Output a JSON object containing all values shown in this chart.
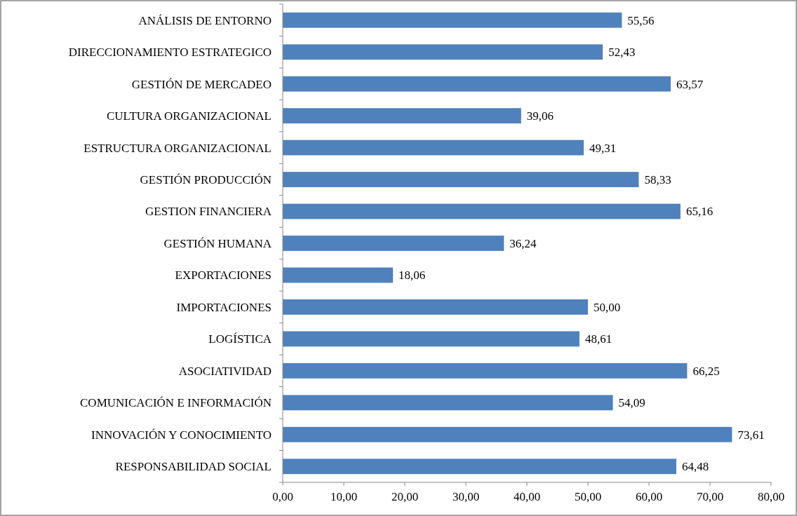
{
  "chart_data": {
    "type": "bar",
    "orientation": "horizontal",
    "categories": [
      "ANÁLISIS DE ENTORNO",
      "DIRECCIONAMIENTO ESTRATEGICO",
      "GESTIÓN DE MERCADEO",
      "CULTURA ORGANIZACIONAL",
      "ESTRUCTURA ORGANIZACIONAL",
      "GESTIÓN PRODUCCIÓN",
      "GESTION FINANCIERA",
      "GESTIÓN HUMANA",
      "EXPORTACIONES",
      "IMPORTACIONES",
      "LOGÍSTICA",
      "ASOCIATIVIDAD",
      "COMUNICACIÓN E INFORMACIÓN",
      "INNOVACIÓN Y CONOCIMIENTO",
      "RESPONSABILIDAD SOCIAL"
    ],
    "values": [
      55.56,
      52.43,
      63.57,
      39.06,
      49.31,
      58.33,
      65.16,
      36.24,
      18.06,
      50.0,
      48.61,
      66.25,
      54.09,
      73.61,
      64.48
    ],
    "value_labels": [
      "55,56",
      "52,43",
      "63,57",
      "39,06",
      "49,31",
      "58,33",
      "65,16",
      "36,24",
      "18,06",
      "50,00",
      "48,61",
      "66,25",
      "54,09",
      "73,61",
      "64,48"
    ],
    "color": "#4f81bd",
    "xlim": [
      0,
      80
    ],
    "xticks": [
      {
        "value": 0,
        "label": "0,00"
      },
      {
        "value": 10,
        "label": "10,00"
      },
      {
        "value": 20,
        "label": "20,00"
      },
      {
        "value": 30,
        "label": "30,00"
      },
      {
        "value": 40,
        "label": "40,00"
      },
      {
        "value": 50,
        "label": "50,00"
      },
      {
        "value": 60,
        "label": "60,00"
      },
      {
        "value": 70,
        "label": "70,00"
      },
      {
        "value": 80,
        "label": "80,00"
      }
    ],
    "grid": false
  }
}
